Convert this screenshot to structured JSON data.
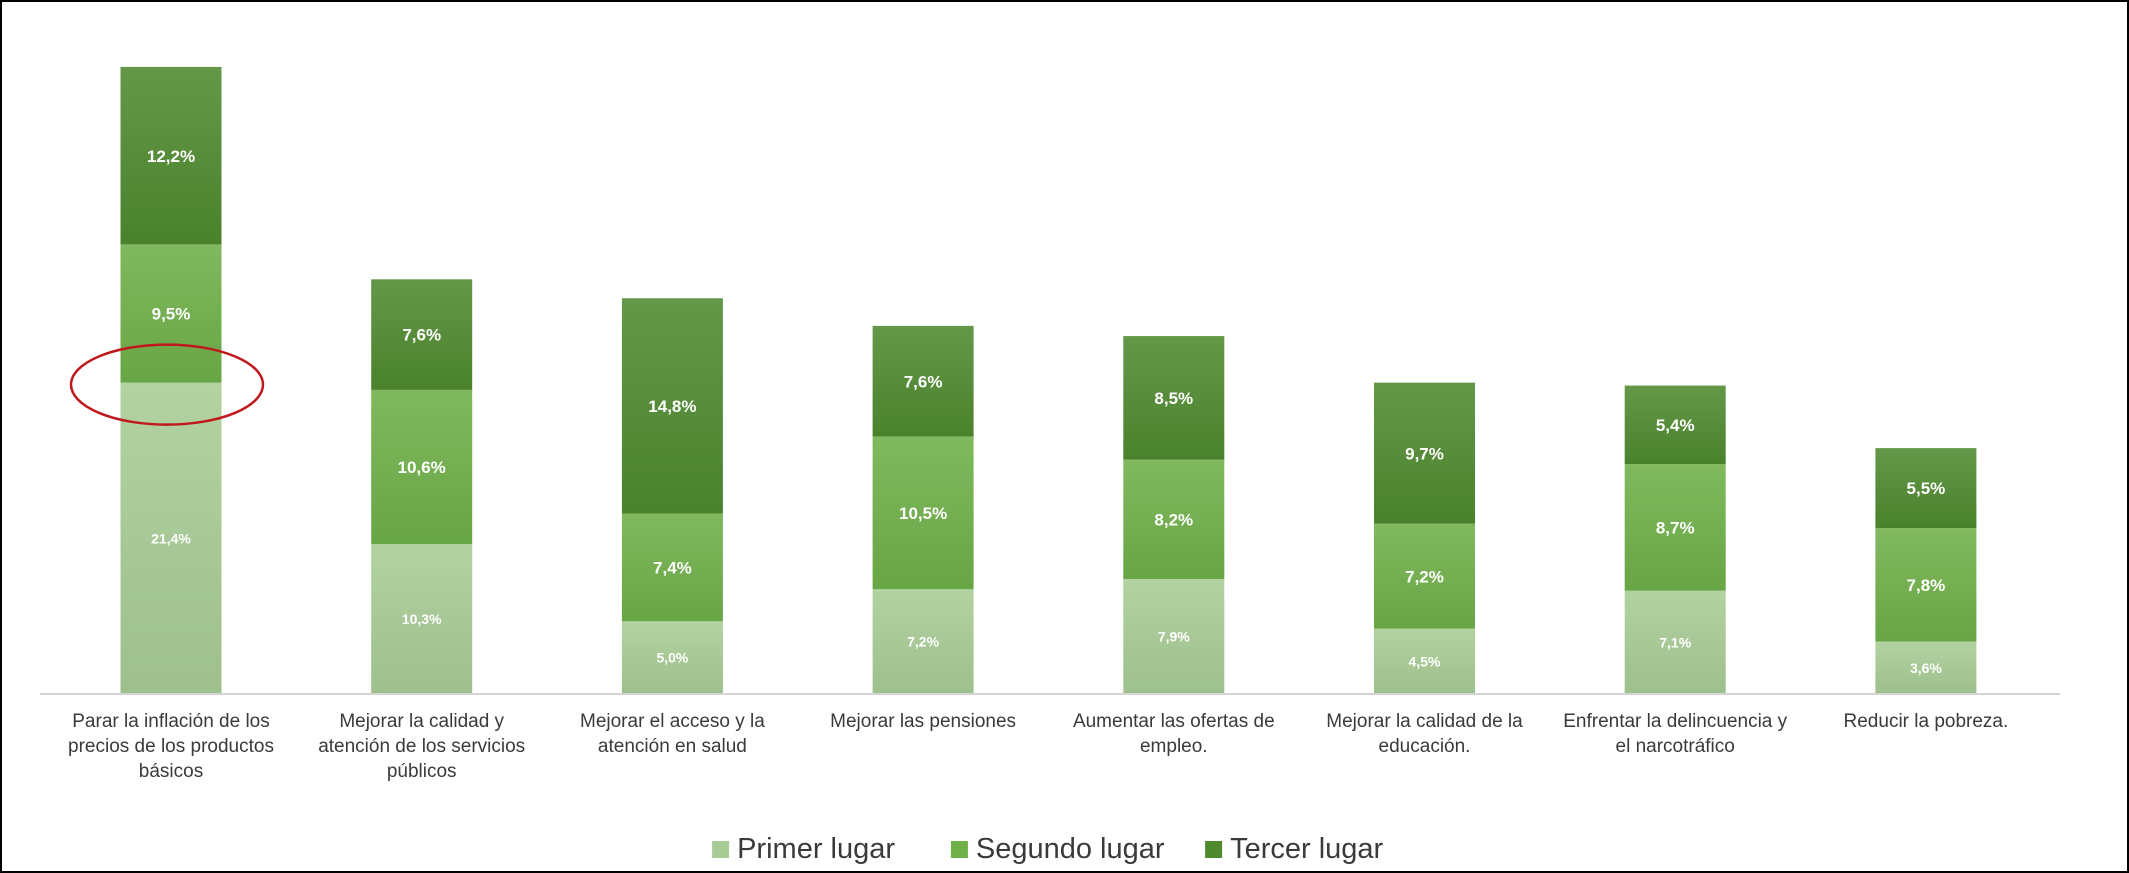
{
  "chart_data": {
    "type": "stacked-bar",
    "title": "",
    "xlabel": "",
    "ylabel": "",
    "ylim": [
      0,
      45
    ],
    "grid": false,
    "legend_position": "bottom",
    "categories": [
      "Parar la inflación de los precios de los productos básicos",
      "Mejorar la calidad y atención de los servicios públicos",
      "Mejorar el acceso y la atención en salud",
      "Mejorar las pensiones",
      "Aumentar las ofertas de empleo.",
      "Mejorar la calidad de la educación.",
      "Enfrentar la delincuencia y el narcotráfico",
      "Reducir la pobreza."
    ],
    "category_lines": [
      [
        "Parar la inflación de los",
        "precios de los productos",
        "básicos"
      ],
      [
        "Mejorar la calidad y",
        "atención de los servicios",
        "públicos"
      ],
      [
        "Mejorar el acceso y la",
        "atención en salud"
      ],
      [
        "Mejorar las pensiones"
      ],
      [
        "Aumentar las ofertas de",
        "empleo."
      ],
      [
        "Mejorar la calidad de la",
        "educación."
      ],
      [
        "Enfrentar la delincuencia y",
        "el narcotráfico"
      ],
      [
        "Reducir la pobreza."
      ]
    ],
    "series": [
      {
        "name": "Primer lugar",
        "color": "#a8cc95",
        "values": [
          21.4,
          10.3,
          5.0,
          7.2,
          7.9,
          4.5,
          7.1,
          3.6
        ],
        "labels": [
          "21,4%",
          "10,3%",
          "5,0%",
          "7,2%",
          "7,9%",
          "4,5%",
          "7,1%",
          "3,6%"
        ]
      },
      {
        "name": "Segundo lugar",
        "color": "#6fb048",
        "values": [
          9.5,
          10.6,
          7.4,
          10.5,
          8.2,
          7.2,
          8.7,
          7.8
        ],
        "labels": [
          "9,5%",
          "10,6%",
          "7,4%",
          "10,5%",
          "8,2%",
          "7,2%",
          "8,7%",
          "7,8%"
        ]
      },
      {
        "name": "Tercer lugar",
        "color": "#4f8a2f",
        "values": [
          12.2,
          7.6,
          14.8,
          7.6,
          8.5,
          9.7,
          5.4,
          5.5
        ],
        "labels": [
          "12,2%",
          "7,6%",
          "14,8%",
          "7,6%",
          "8,5%",
          "9,7%",
          "5,4%",
          "5,5%"
        ]
      }
    ],
    "annotation": {
      "type": "ellipse",
      "color": "#c0181c",
      "category_index": 0
    }
  }
}
